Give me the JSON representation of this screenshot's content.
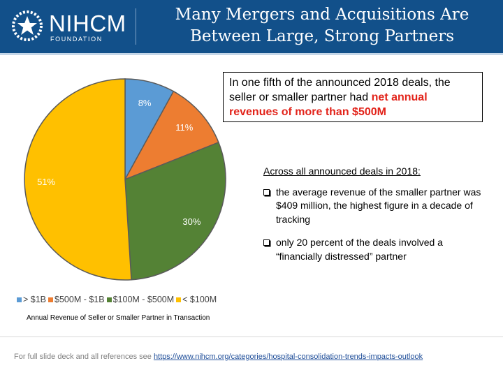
{
  "header": {
    "logo_name": "NIHCM",
    "logo_sub": "FOUNDATION",
    "title_line1": "Many Mergers and Acquisitions Are",
    "title_line2": "Between Large, Strong Partners",
    "background": "#12508a"
  },
  "callout": {
    "line1": "In one fifth of the announced 2018 deals, the",
    "line2_plain": "seller or smaller partner had ",
    "line2_em": "net annual",
    "line3_em": "revenues of more than $500M",
    "emphasis_color": "#e2231a"
  },
  "facts": {
    "heading": "Across all announced deals in 2018:",
    "items": [
      "the average revenue of the smaller partner was $409 million, the highest figure in a decade of tracking",
      "only 20 percent of the deals involved a “financially distressed” partner"
    ]
  },
  "chart_data": {
    "type": "pie",
    "title": "",
    "caption": "Annual Revenue of Seller or Smaller Partner in Transaction",
    "categories": [
      "> $1B",
      "$500M - $1B",
      "$100M - $500M",
      "< $100M"
    ],
    "values": [
      8,
      11,
      30,
      51
    ],
    "labels": [
      "8%",
      "11%",
      "30%",
      "51%"
    ],
    "colors": [
      "#5b9bd5",
      "#ed7d31",
      "#548235",
      "#ffc000"
    ],
    "legend_position": "bottom"
  },
  "footer": {
    "text": "For full slide deck and all references see ",
    "link": "https://www.nihcm.org/categories/hospital-consolidation-trends-impacts-outlook"
  }
}
